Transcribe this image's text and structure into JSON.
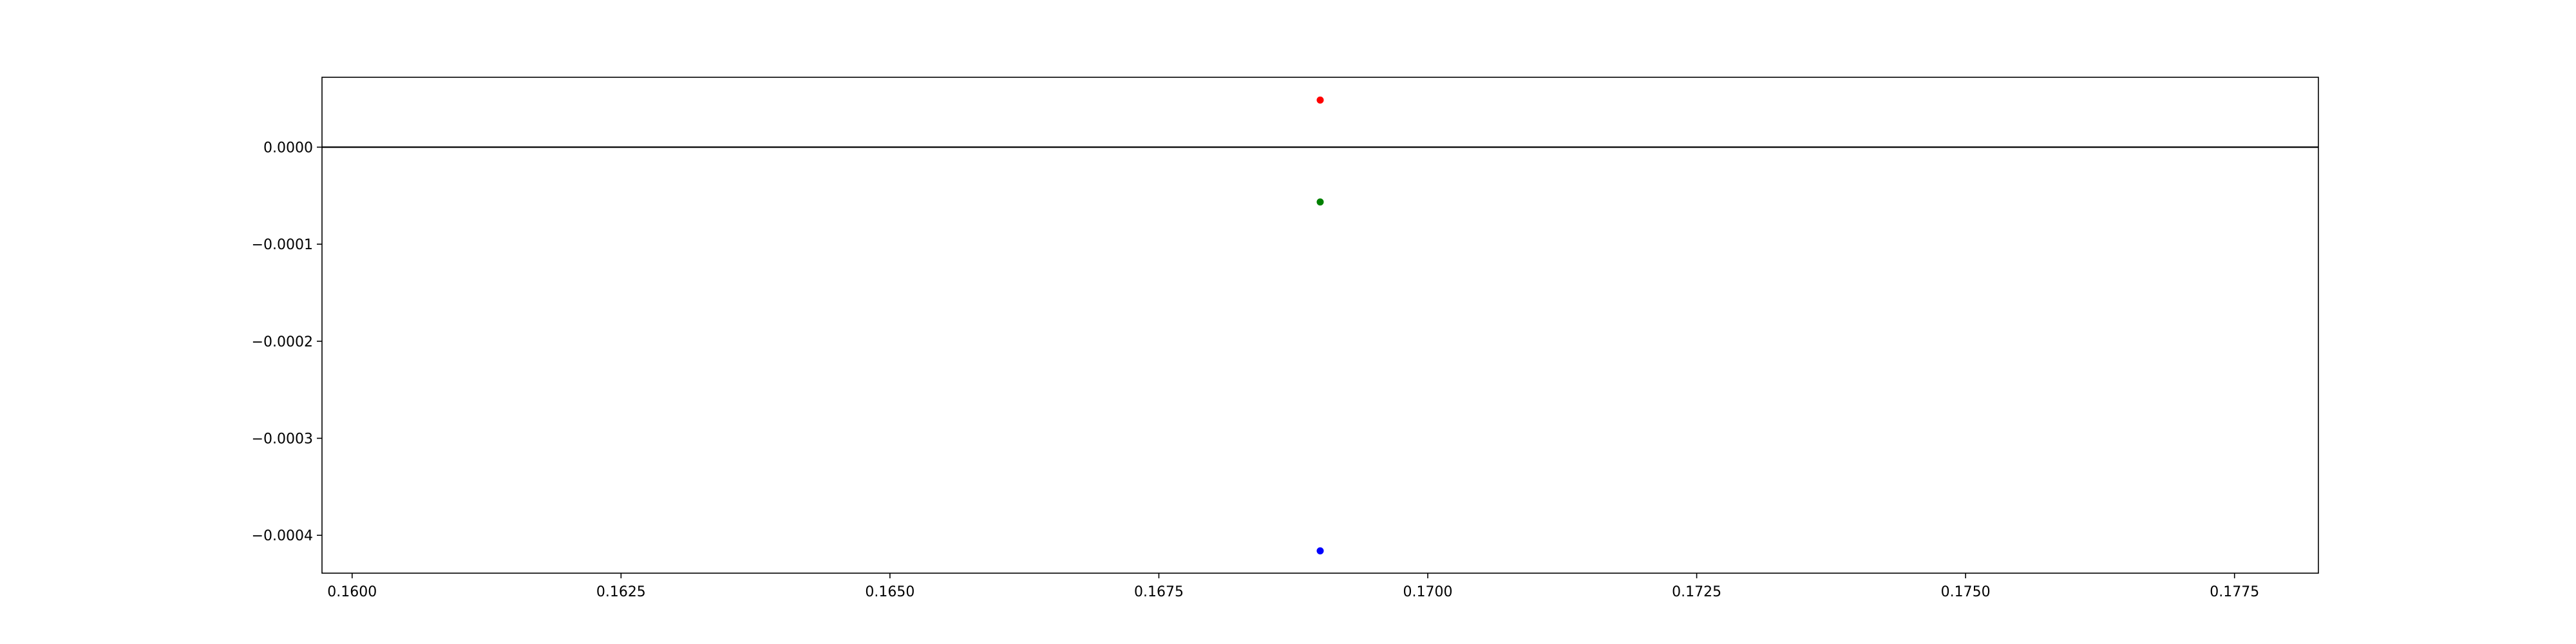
{
  "chart_data": {
    "type": "scatter",
    "title": "",
    "xlabel": "",
    "ylabel": "",
    "xlim": [
      0.15972,
      0.17828
    ],
    "ylim": [
      -0.000439,
      7.2e-05
    ],
    "x_ticks": [
      {
        "value": 0.16,
        "label": "0.1600"
      },
      {
        "value": 0.1625,
        "label": "0.1625"
      },
      {
        "value": 0.165,
        "label": "0.1650"
      },
      {
        "value": 0.1675,
        "label": "0.1675"
      },
      {
        "value": 0.17,
        "label": "0.1700"
      },
      {
        "value": 0.1725,
        "label": "0.1725"
      },
      {
        "value": 0.175,
        "label": "0.1750"
      },
      {
        "value": 0.1775,
        "label": "0.1775"
      }
    ],
    "y_ticks": [
      {
        "value": 0.0,
        "label": "0.0000"
      },
      {
        "value": -0.0001,
        "label": "−0.0001"
      },
      {
        "value": -0.0002,
        "label": "−0.0002"
      },
      {
        "value": -0.0003,
        "label": "−0.0003"
      },
      {
        "value": -0.0004,
        "label": "−0.0004"
      }
    ],
    "hline": 0.0,
    "grid": false,
    "points": [
      {
        "x": 0.169,
        "y": 4.85e-05,
        "color": "#ff0000"
      },
      {
        "x": 0.169,
        "y": -5.65e-05,
        "color": "#008000"
      },
      {
        "x": 0.169,
        "y": -0.000416,
        "color": "#0000ff"
      }
    ]
  }
}
